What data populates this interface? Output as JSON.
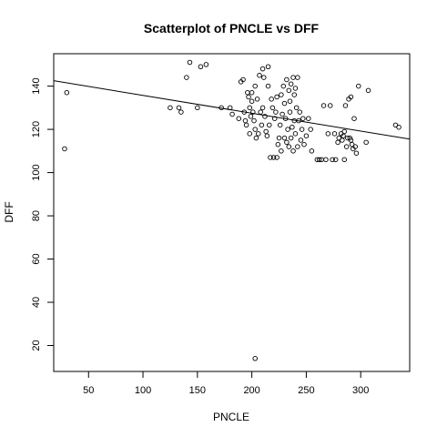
{
  "chart_data": {
    "type": "scatter",
    "title": "Scatterplot of PNCLE vs DFF",
    "xlabel": "PNCLE",
    "ylabel": "DFF",
    "xlim": [
      18,
      345
    ],
    "ylim": [
      8,
      155
    ],
    "x_ticks": [
      50,
      100,
      150,
      200,
      250,
      300
    ],
    "y_ticks": [
      20,
      40,
      60,
      80,
      100,
      120,
      140
    ],
    "grid": false,
    "legend": "none",
    "regression_line": {
      "x": [
        18,
        345
      ],
      "y": [
        142.5,
        115.5
      ]
    },
    "points": [
      {
        "x": 28,
        "y": 111
      },
      {
        "x": 30,
        "y": 137
      },
      {
        "x": 125,
        "y": 130
      },
      {
        "x": 133,
        "y": 130
      },
      {
        "x": 135,
        "y": 128
      },
      {
        "x": 140,
        "y": 144
      },
      {
        "x": 143,
        "y": 151
      },
      {
        "x": 150,
        "y": 130
      },
      {
        "x": 153,
        "y": 149
      },
      {
        "x": 158,
        "y": 150
      },
      {
        "x": 172,
        "y": 130
      },
      {
        "x": 180,
        "y": 130
      },
      {
        "x": 182,
        "y": 127
      },
      {
        "x": 188,
        "y": 125
      },
      {
        "x": 190,
        "y": 142
      },
      {
        "x": 192,
        "y": 143
      },
      {
        "x": 193,
        "y": 128
      },
      {
        "x": 194,
        "y": 124
      },
      {
        "x": 195,
        "y": 122
      },
      {
        "x": 196,
        "y": 137
      },
      {
        "x": 197,
        "y": 135
      },
      {
        "x": 198,
        "y": 118
      },
      {
        "x": 198,
        "y": 130
      },
      {
        "x": 199,
        "y": 126
      },
      {
        "x": 200,
        "y": 137
      },
      {
        "x": 200,
        "y": 133
      },
      {
        "x": 201,
        "y": 128
      },
      {
        "x": 202,
        "y": 124
      },
      {
        "x": 203,
        "y": 140
      },
      {
        "x": 203,
        "y": 120
      },
      {
        "x": 204,
        "y": 116
      },
      {
        "x": 205,
        "y": 134
      },
      {
        "x": 206,
        "y": 118
      },
      {
        "x": 207,
        "y": 145
      },
      {
        "x": 208,
        "y": 128
      },
      {
        "x": 209,
        "y": 122
      },
      {
        "x": 210,
        "y": 148
      },
      {
        "x": 210,
        "y": 130
      },
      {
        "x": 211,
        "y": 144
      },
      {
        "x": 212,
        "y": 126
      },
      {
        "x": 213,
        "y": 119
      },
      {
        "x": 214,
        "y": 117
      },
      {
        "x": 215,
        "y": 140
      },
      {
        "x": 215,
        "y": 149
      },
      {
        "x": 216,
        "y": 122
      },
      {
        "x": 217,
        "y": 107
      },
      {
        "x": 218,
        "y": 134
      },
      {
        "x": 219,
        "y": 130
      },
      {
        "x": 220,
        "y": 107
      },
      {
        "x": 221,
        "y": 125
      },
      {
        "x": 222,
        "y": 128
      },
      {
        "x": 223,
        "y": 107
      },
      {
        "x": 223,
        "y": 135
      },
      {
        "x": 224,
        "y": 113
      },
      {
        "x": 225,
        "y": 116
      },
      {
        "x": 226,
        "y": 122
      },
      {
        "x": 227,
        "y": 136
      },
      {
        "x": 227,
        "y": 110
      },
      {
        "x": 228,
        "y": 127
      },
      {
        "x": 229,
        "y": 140
      },
      {
        "x": 230,
        "y": 116
      },
      {
        "x": 230,
        "y": 132
      },
      {
        "x": 231,
        "y": 125
      },
      {
        "x": 232,
        "y": 143
      },
      {
        "x": 232,
        "y": 114
      },
      {
        "x": 233,
        "y": 120
      },
      {
        "x": 234,
        "y": 138
      },
      {
        "x": 234,
        "y": 112
      },
      {
        "x": 235,
        "y": 128
      },
      {
        "x": 235,
        "y": 133
      },
      {
        "x": 236,
        "y": 141
      },
      {
        "x": 236,
        "y": 116
      },
      {
        "x": 237,
        "y": 121
      },
      {
        "x": 238,
        "y": 144
      },
      {
        "x": 238,
        "y": 110
      },
      {
        "x": 239,
        "y": 136
      },
      {
        "x": 239,
        "y": 124
      },
      {
        "x": 240,
        "y": 118
      },
      {
        "x": 240,
        "y": 139
      },
      {
        "x": 241,
        "y": 130
      },
      {
        "x": 242,
        "y": 144
      },
      {
        "x": 242,
        "y": 112
      },
      {
        "x": 243,
        "y": 124
      },
      {
        "x": 244,
        "y": 128
      },
      {
        "x": 245,
        "y": 115
      },
      {
        "x": 246,
        "y": 120
      },
      {
        "x": 247,
        "y": 125
      },
      {
        "x": 248,
        "y": 113
      },
      {
        "x": 250,
        "y": 117
      },
      {
        "x": 252,
        "y": 125
      },
      {
        "x": 254,
        "y": 120
      },
      {
        "x": 255,
        "y": 110
      },
      {
        "x": 260,
        "y": 106
      },
      {
        "x": 262,
        "y": 106
      },
      {
        "x": 264,
        "y": 106
      },
      {
        "x": 266,
        "y": 131
      },
      {
        "x": 268,
        "y": 106
      },
      {
        "x": 270,
        "y": 118
      },
      {
        "x": 272,
        "y": 131
      },
      {
        "x": 274,
        "y": 106
      },
      {
        "x": 276,
        "y": 118
      },
      {
        "x": 277,
        "y": 106
      },
      {
        "x": 279,
        "y": 114
      },
      {
        "x": 280,
        "y": 116
      },
      {
        "x": 282,
        "y": 118
      },
      {
        "x": 283,
        "y": 115
      },
      {
        "x": 284,
        "y": 117
      },
      {
        "x": 285,
        "y": 119
      },
      {
        "x": 285,
        "y": 106
      },
      {
        "x": 286,
        "y": 131
      },
      {
        "x": 287,
        "y": 112
      },
      {
        "x": 288,
        "y": 116
      },
      {
        "x": 289,
        "y": 134
      },
      {
        "x": 290,
        "y": 116
      },
      {
        "x": 291,
        "y": 115
      },
      {
        "x": 291,
        "y": 135
      },
      {
        "x": 292,
        "y": 113
      },
      {
        "x": 293,
        "y": 111
      },
      {
        "x": 294,
        "y": 125
      },
      {
        "x": 295,
        "y": 112
      },
      {
        "x": 296,
        "y": 109
      },
      {
        "x": 298,
        "y": 140
      },
      {
        "x": 305,
        "y": 114
      },
      {
        "x": 307,
        "y": 138
      },
      {
        "x": 332,
        "y": 122
      },
      {
        "x": 335,
        "y": 121
      },
      {
        "x": 203,
        "y": 14
      }
    ]
  }
}
